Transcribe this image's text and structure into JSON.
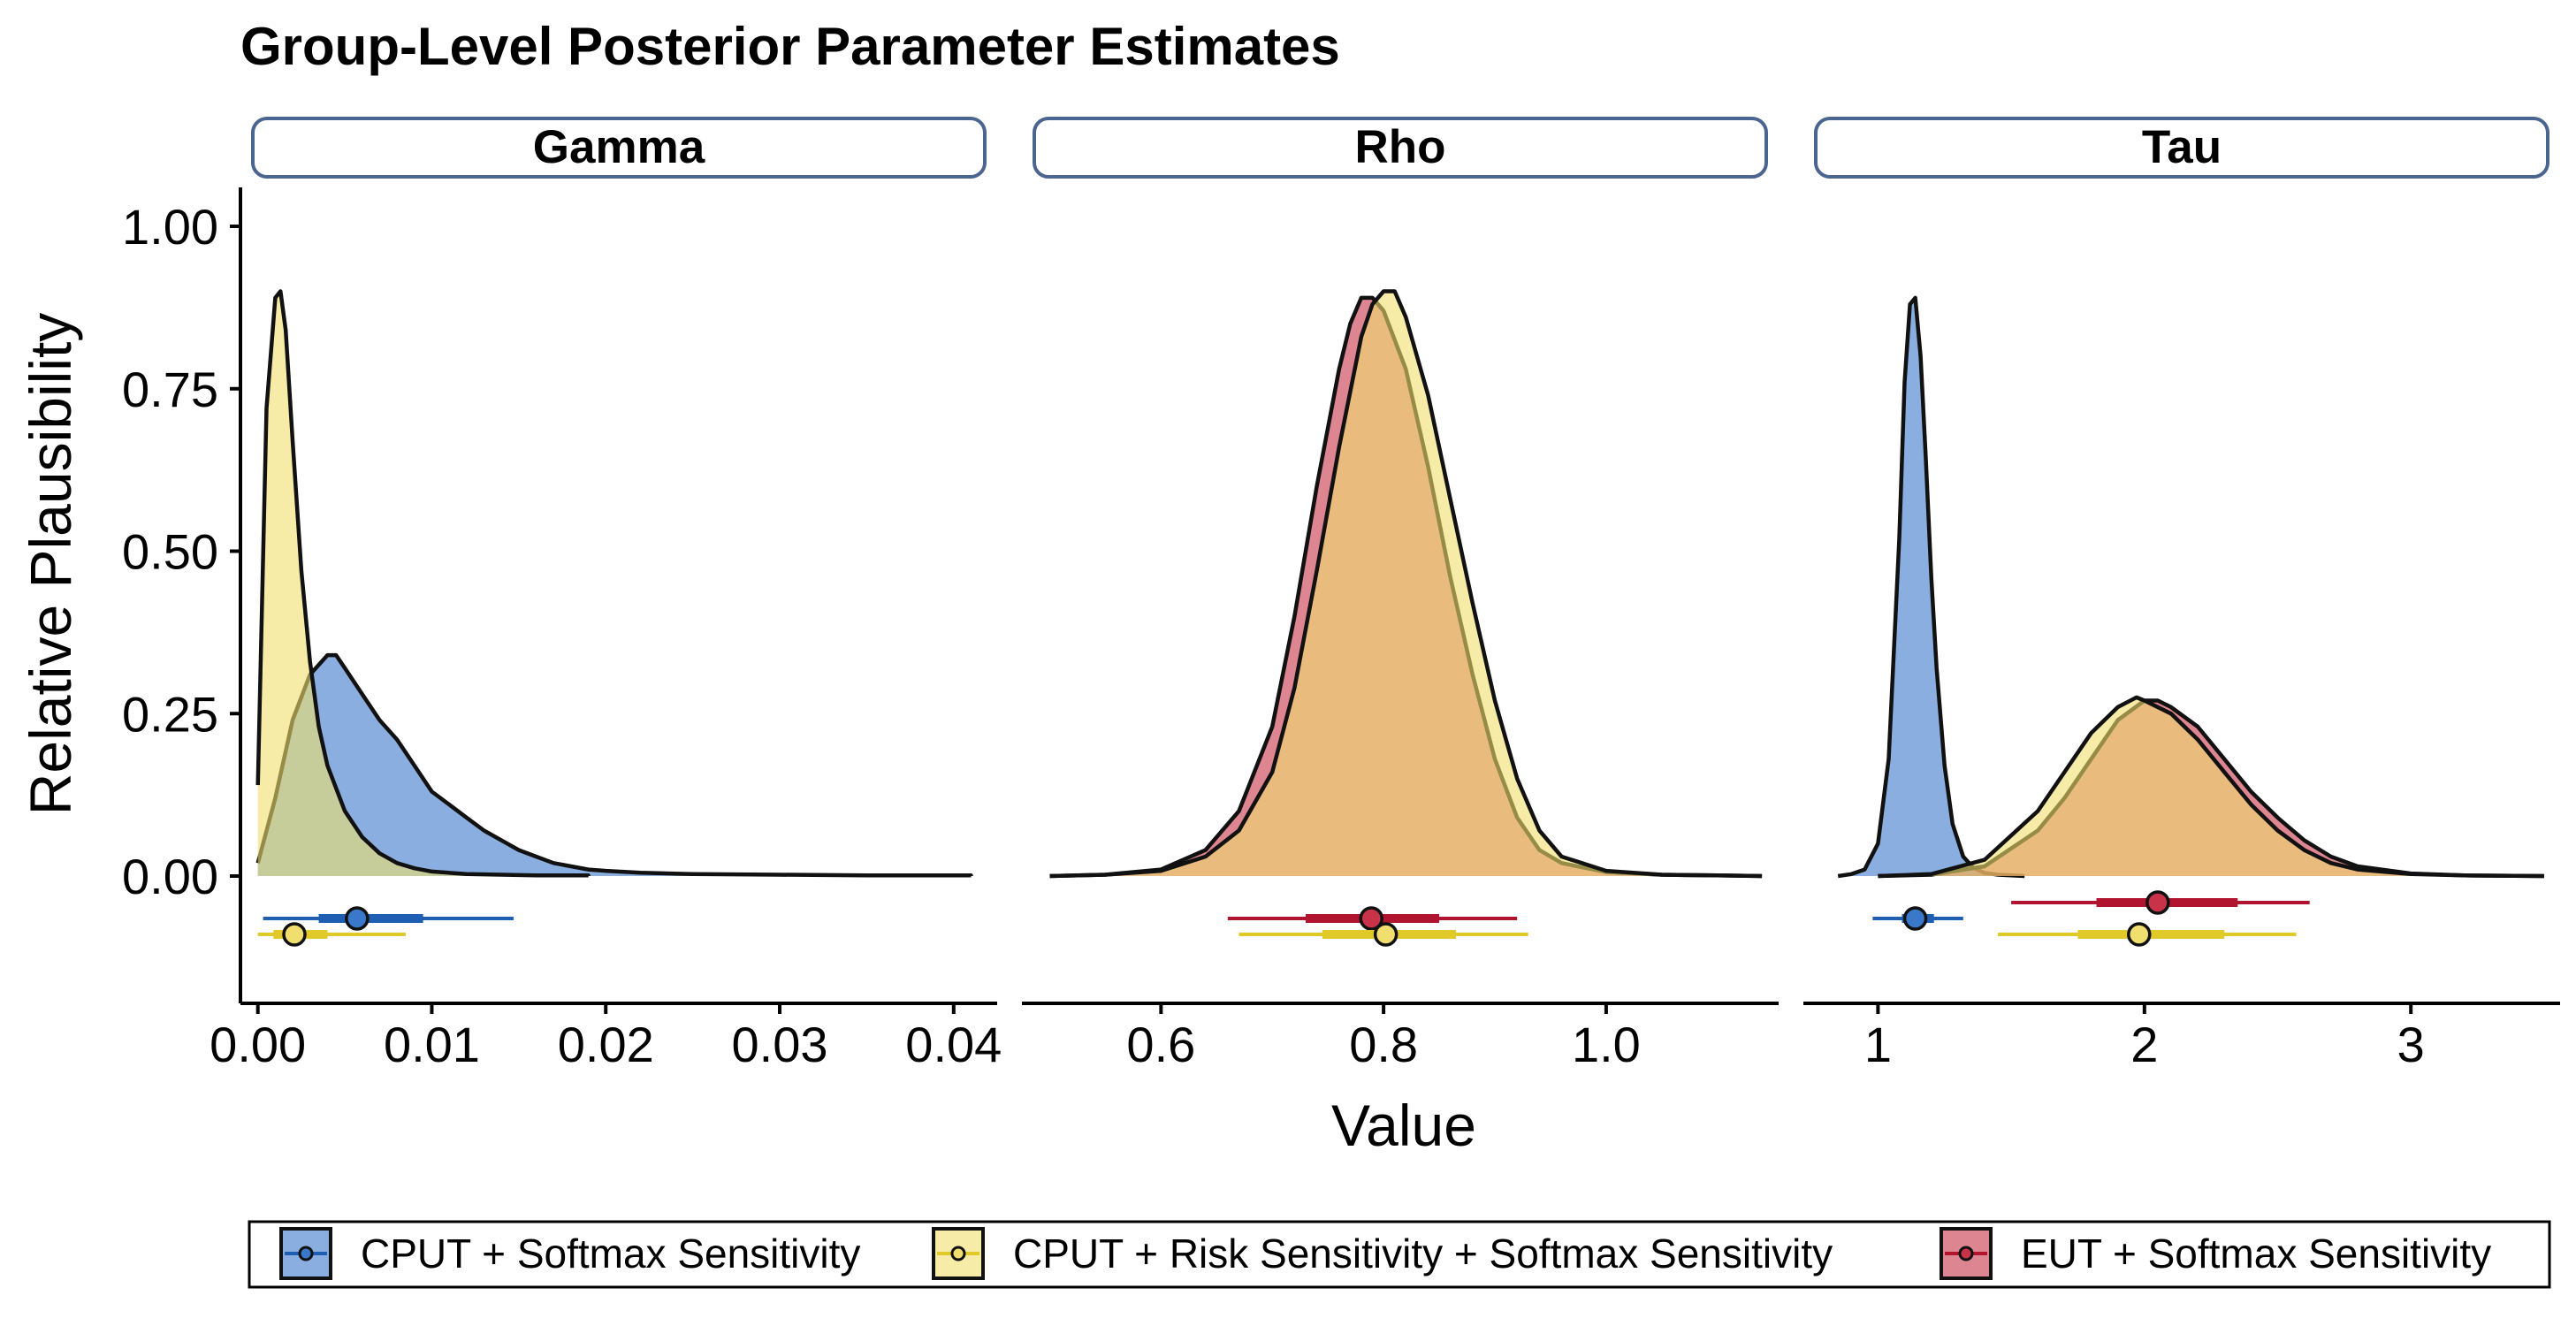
{
  "chart_data": {
    "type": "density",
    "title": "Group-Level Posterior Parameter Estimates",
    "xlabel": "Value",
    "ylabel": "Relative Plausibility",
    "ylim": [
      0,
      1
    ],
    "y_ticks": [
      "0.00",
      "0.25",
      "0.50",
      "0.75",
      "1.00"
    ],
    "grid": false,
    "legend_position": "bottom",
    "series": [
      {
        "name": "CPUT + Softmax Sensitivity",
        "color": "#3a78c9"
      },
      {
        "name": "CPUT + Risk Sensitivity + Softmax Sensitivity",
        "color": "#f0df6e"
      },
      {
        "name": "EUT + Softmax Sensitivity",
        "color": "#c8334a"
      }
    ],
    "panels": [
      {
        "name": "Gamma",
        "xlim": [
          -0.001,
          0.0425
        ],
        "x_ticks": [
          0,
          0.01,
          0.02,
          0.03,
          0.04
        ],
        "x_tick_labels": [
          "0.00",
          "0.01",
          "0.02",
          "0.03",
          "0.04"
        ],
        "densities": [
          {
            "series": 0,
            "x": [
              0,
              0.001,
              0.002,
              0.003,
              0.004,
              0.0045,
              0.005,
              0.006,
              0.007,
              0.008,
              0.009,
              0.01,
              0.011,
              0.012,
              0.013,
              0.014,
              0.015,
              0.016,
              0.017,
              0.018,
              0.019,
              0.02,
              0.022,
              0.025,
              0.03,
              0.035,
              0.041
            ],
            "y": [
              0.02,
              0.12,
              0.24,
              0.31,
              0.34,
              0.34,
              0.32,
              0.28,
              0.24,
              0.21,
              0.17,
              0.13,
              0.11,
              0.09,
              0.07,
              0.055,
              0.04,
              0.03,
              0.02,
              0.015,
              0.01,
              0.008,
              0.005,
              0.003,
              0.002,
              0.001,
              0.001
            ]
          },
          {
            "series": 1,
            "x": [
              0,
              0.0005,
              0.001,
              0.0013,
              0.0016,
              0.002,
              0.0025,
              0.003,
              0.0035,
              0.004,
              0.005,
              0.006,
              0.007,
              0.008,
              0.009,
              0.01,
              0.012,
              0.014,
              0.016,
              0.019
            ],
            "y": [
              0.14,
              0.72,
              0.89,
              0.9,
              0.84,
              0.67,
              0.47,
              0.33,
              0.23,
              0.17,
              0.1,
              0.06,
              0.035,
              0.02,
              0.012,
              0.007,
              0.003,
              0.002,
              0.001,
              0.001
            ]
          }
        ],
        "intervals": [
          {
            "series": 0,
            "median": 0.0057,
            "inner": [
              0.0035,
              0.0095
            ],
            "outer": [
              0.0003,
              0.0147
            ],
            "row": 0
          },
          {
            "series": 1,
            "median": 0.0021,
            "inner": [
              0.0009,
              0.004
            ],
            "outer": [
              0.0,
              0.0085
            ],
            "row": 1
          }
        ]
      },
      {
        "name": "Rho",
        "xlim": [
          0.475,
          1.155
        ],
        "x_ticks": [
          0.6,
          0.8,
          1.0
        ],
        "x_tick_labels": [
          "0.6",
          "0.8",
          "1.0"
        ],
        "densities": [
          {
            "series": 2,
            "x": [
              0.5,
              0.55,
              0.6,
              0.64,
              0.67,
              0.7,
              0.72,
              0.74,
              0.76,
              0.77,
              0.78,
              0.79,
              0.8,
              0.82,
              0.84,
              0.86,
              0.88,
              0.9,
              0.92,
              0.94,
              0.96,
              1.0,
              1.05,
              1.1,
              1.14
            ],
            "y": [
              0.0,
              0.002,
              0.01,
              0.04,
              0.1,
              0.23,
              0.4,
              0.6,
              0.78,
              0.85,
              0.89,
              0.89,
              0.87,
              0.78,
              0.63,
              0.46,
              0.31,
              0.18,
              0.09,
              0.04,
              0.02,
              0.006,
              0.002,
              0.001,
              0.0
            ]
          },
          {
            "series": 1,
            "x": [
              0.5,
              0.55,
              0.6,
              0.64,
              0.67,
              0.7,
              0.72,
              0.74,
              0.76,
              0.78,
              0.79,
              0.8,
              0.81,
              0.82,
              0.84,
              0.86,
              0.88,
              0.9,
              0.92,
              0.94,
              0.96,
              1.0,
              1.05,
              1.1,
              1.14
            ],
            "y": [
              0.0,
              0.002,
              0.008,
              0.03,
              0.07,
              0.16,
              0.29,
              0.47,
              0.66,
              0.83,
              0.88,
              0.9,
              0.9,
              0.86,
              0.74,
              0.58,
              0.42,
              0.27,
              0.15,
              0.07,
              0.03,
              0.008,
              0.002,
              0.001,
              0.0
            ]
          }
        ],
        "intervals": [
          {
            "series": 2,
            "median": 0.789,
            "inner": [
              0.73,
              0.85
            ],
            "outer": [
              0.66,
              0.92
            ],
            "row": 0
          },
          {
            "series": 1,
            "median": 0.802,
            "inner": [
              0.745,
              0.865
            ],
            "outer": [
              0.67,
              0.93
            ],
            "row": 1
          }
        ]
      },
      {
        "name": "Tau",
        "xlim": [
          0.72,
          3.56
        ],
        "x_ticks": [
          1,
          2,
          3
        ],
        "x_tick_labels": [
          "1",
          "2",
          "3"
        ],
        "densities": [
          {
            "series": 0,
            "x": [
              0.85,
              0.9,
              0.95,
              1.0,
              1.04,
              1.08,
              1.1,
              1.12,
              1.14,
              1.16,
              1.18,
              1.2,
              1.22,
              1.25,
              1.28,
              1.32,
              1.36,
              1.4,
              1.45,
              1.5,
              1.55
            ],
            "y": [
              0.0,
              0.003,
              0.01,
              0.05,
              0.18,
              0.52,
              0.76,
              0.88,
              0.89,
              0.8,
              0.64,
              0.46,
              0.32,
              0.17,
              0.08,
              0.03,
              0.012,
              0.005,
              0.002,
              0.001,
              0.0
            ]
          },
          {
            "series": 2,
            "x": [
              1.0,
              1.2,
              1.4,
              1.6,
              1.7,
              1.8,
              1.9,
              2.0,
              2.05,
              2.1,
              2.2,
              2.3,
              2.4,
              2.5,
              2.6,
              2.7,
              2.8,
              3.0,
              3.2,
              3.5
            ],
            "y": [
              0.0,
              0.002,
              0.015,
              0.07,
              0.12,
              0.18,
              0.24,
              0.27,
              0.27,
              0.26,
              0.23,
              0.18,
              0.13,
              0.09,
              0.055,
              0.03,
              0.015,
              0.004,
              0.001,
              0.0
            ]
          },
          {
            "series": 1,
            "x": [
              1.0,
              1.2,
              1.4,
              1.6,
              1.7,
              1.8,
              1.9,
              1.97,
              2.0,
              2.1,
              2.2,
              2.3,
              2.4,
              2.5,
              2.6,
              2.7,
              2.8,
              3.0,
              3.2,
              3.5
            ],
            "y": [
              0.0,
              0.003,
              0.025,
              0.1,
              0.16,
              0.22,
              0.26,
              0.275,
              0.27,
              0.25,
              0.21,
              0.16,
              0.11,
              0.07,
              0.04,
              0.02,
              0.01,
              0.003,
              0.001,
              0.0
            ]
          }
        ],
        "intervals": [
          {
            "series": 0,
            "median": 1.14,
            "inner": [
              1.09,
              1.21
            ],
            "outer": [
              0.98,
              1.32
            ],
            "row": 0
          },
          {
            "series": 2,
            "median": 2.05,
            "inner": [
              1.82,
              2.35
            ],
            "outer": [
              1.5,
              2.62
            ],
            "row": -0.45
          },
          {
            "series": 1,
            "median": 1.98,
            "inner": [
              1.75,
              2.3
            ],
            "outer": [
              1.45,
              2.57
            ],
            "row": 1
          }
        ]
      }
    ]
  }
}
